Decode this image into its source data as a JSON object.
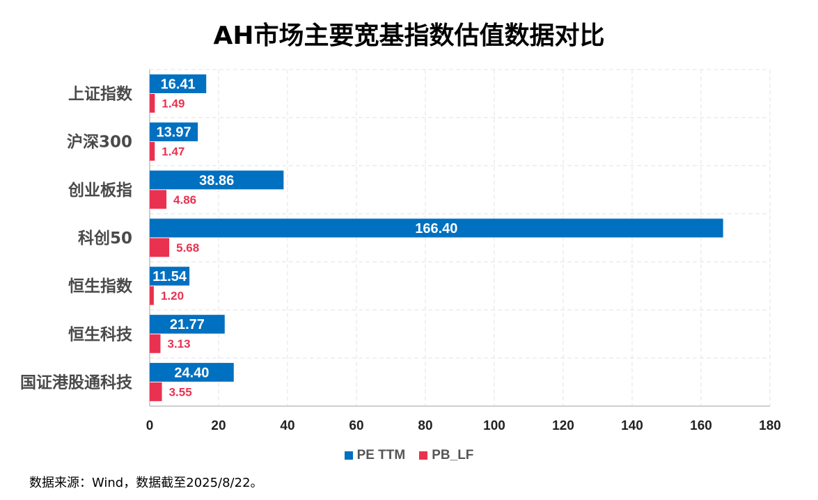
{
  "chart_data": {
    "type": "bar",
    "orientation": "horizontal",
    "title": "AH市场主要宽基指数估值数据对比",
    "categories": [
      "上证指数",
      "沪深300",
      "创业板指",
      "科创50",
      "恒生指数",
      "恒生科技",
      "国证港股通科技"
    ],
    "series": [
      {
        "name": "PE TTM",
        "color": "#0070c0",
        "values": [
          16.41,
          13.97,
          38.86,
          166.4,
          11.54,
          21.77,
          24.4
        ]
      },
      {
        "name": "PB_LF",
        "color": "#e8324f",
        "values": [
          1.49,
          1.47,
          4.86,
          5.68,
          1.2,
          3.13,
          3.55
        ]
      }
    ],
    "xlim": [
      0,
      180
    ],
    "xticks": [
      "0",
      "20",
      "40",
      "60",
      "80",
      "100",
      "120",
      "140",
      "160",
      "180"
    ],
    "grid": true,
    "legend_position": "bottom"
  },
  "source_note": "数据来源：Wind，数据截至2025/8/22。"
}
